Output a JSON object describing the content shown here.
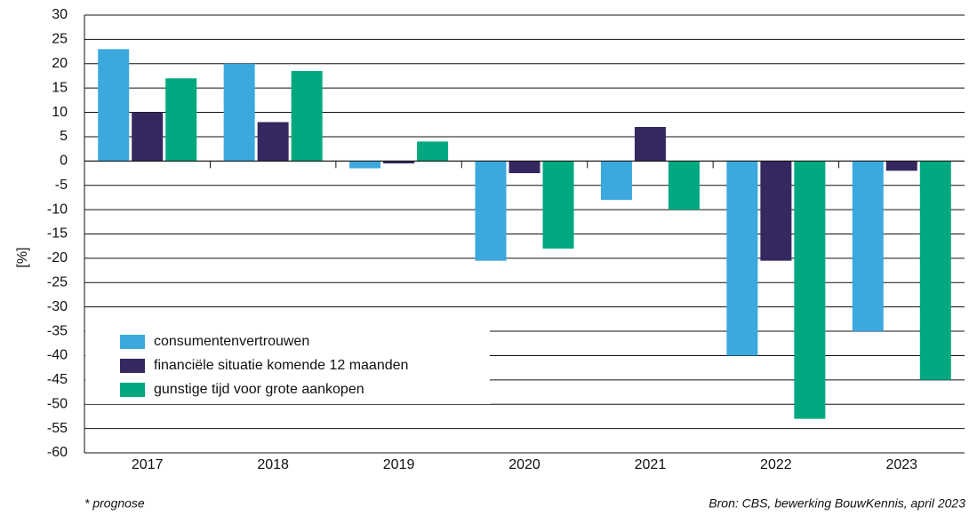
{
  "chart_data": {
    "type": "bar",
    "y_label": "[%]",
    "categories": [
      "2017",
      "2018",
      "2019",
      "2020",
      "2021",
      "2022",
      "2023"
    ],
    "series": [
      {
        "name": "consumentenvertrouwen",
        "color": "#3ba9dd",
        "values": [
          23,
          20,
          -1.5,
          -20.5,
          -8,
          -40,
          -35
        ]
      },
      {
        "name": "financiële situatie komende 12 maanden",
        "color": "#35285f",
        "values": [
          10,
          8,
          -0.5,
          -2.5,
          7,
          -20.5,
          -2
        ]
      },
      {
        "name": "gunstige tijd voor grote aankopen",
        "color": "#00a880",
        "values": [
          17,
          18.5,
          4,
          -18,
          -10,
          -53,
          -45
        ]
      }
    ],
    "ylim": [
      -60,
      30
    ],
    "yticks": [
      30,
      25,
      20,
      15,
      10,
      5,
      0,
      -5,
      -10,
      -15,
      -20,
      -25,
      -30,
      -35,
      -40,
      -45,
      -50,
      -55,
      -60
    ],
    "grid": true,
    "legend": "lower left",
    "footnote": "* prognose",
    "source": "Bron: CBS, bewerking BouwKennis, april 2023"
  }
}
